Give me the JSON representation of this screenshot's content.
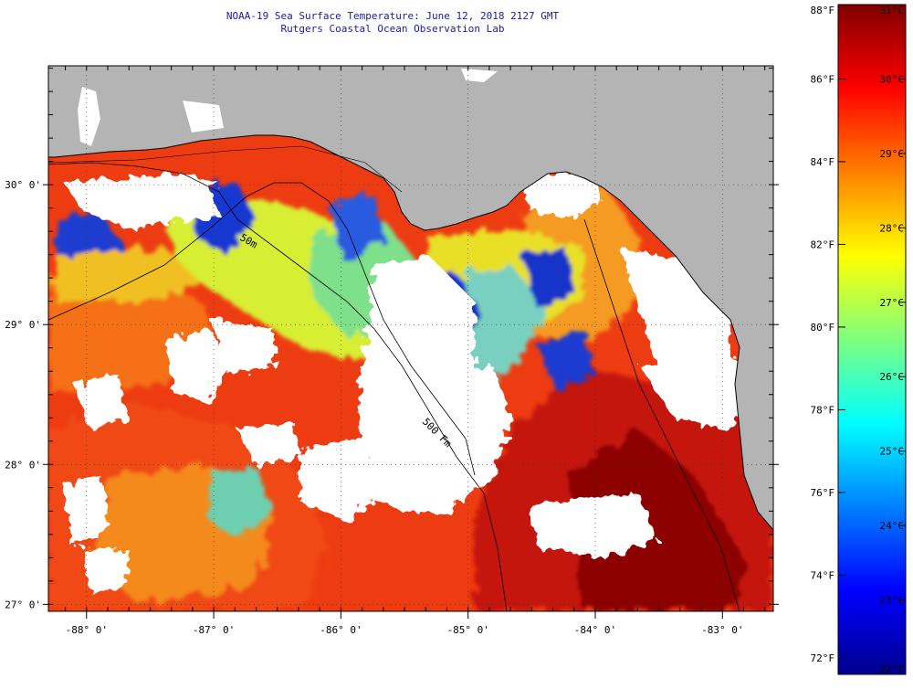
{
  "title": {
    "line1": "NOAA-19 Sea Surface Temperature:  June 12, 2018 2127 GMT",
    "line2": "Rutgers Coastal Ocean Observation Lab"
  },
  "map": {
    "lon_range": [
      -88.3,
      -82.6
    ],
    "lat_range": [
      26.95,
      30.85
    ],
    "lon_ticks": [
      {
        "value": -88,
        "label": "-88° 0'"
      },
      {
        "value": -87,
        "label": "-87° 0'"
      },
      {
        "value": -86,
        "label": "-86° 0'"
      },
      {
        "value": -85,
        "label": "-85° 0'"
      },
      {
        "value": -84,
        "label": "-84° 0'"
      },
      {
        "value": -83,
        "label": "-83° 0'"
      }
    ],
    "lat_ticks": [
      {
        "value": 27,
        "label": "27° 0'"
      },
      {
        "value": 28,
        "label": "28° 0'"
      },
      {
        "value": 29,
        "label": "29° 0'"
      },
      {
        "value": 30,
        "label": "30° 0'"
      }
    ],
    "colors": {
      "land": "#b4b4b4",
      "cloud": "#ffffff",
      "coast": "#000000"
    },
    "contour_labels": [
      "50m",
      "500 Fm"
    ]
  },
  "colorbar": {
    "fahrenheit_ticks": [
      {
        "value": 88,
        "label": "88°F"
      },
      {
        "value": 86,
        "label": "86°F"
      },
      {
        "value": 84,
        "label": "84°F"
      },
      {
        "value": 82,
        "label": "82°F"
      },
      {
        "value": 80,
        "label": "80°F"
      },
      {
        "value": 78,
        "label": "78°F"
      },
      {
        "value": 76,
        "label": "76°F"
      },
      {
        "value": 74,
        "label": "74°F"
      },
      {
        "value": 72,
        "label": "72°F"
      }
    ],
    "celsius_ticks": [
      {
        "value": 31,
        "label": "31°C"
      },
      {
        "value": 30,
        "label": "30°C"
      },
      {
        "value": 29,
        "label": "29°C"
      },
      {
        "value": 28,
        "label": "28°C"
      },
      {
        "value": 27,
        "label": "27°C"
      },
      {
        "value": 26,
        "label": "26°C"
      },
      {
        "value": 25,
        "label": "25°C"
      },
      {
        "value": 24,
        "label": "24°C"
      },
      {
        "value": 23,
        "label": "23°C"
      },
      {
        "value": 22,
        "label": "22°C"
      }
    ],
    "range_c": [
      22,
      31
    ],
    "stops": [
      "#00008f",
      "#0000ff",
      "#0080ff",
      "#00ffff",
      "#80ff80",
      "#ffff00",
      "#ff8000",
      "#ff0000",
      "#800000"
    ]
  }
}
